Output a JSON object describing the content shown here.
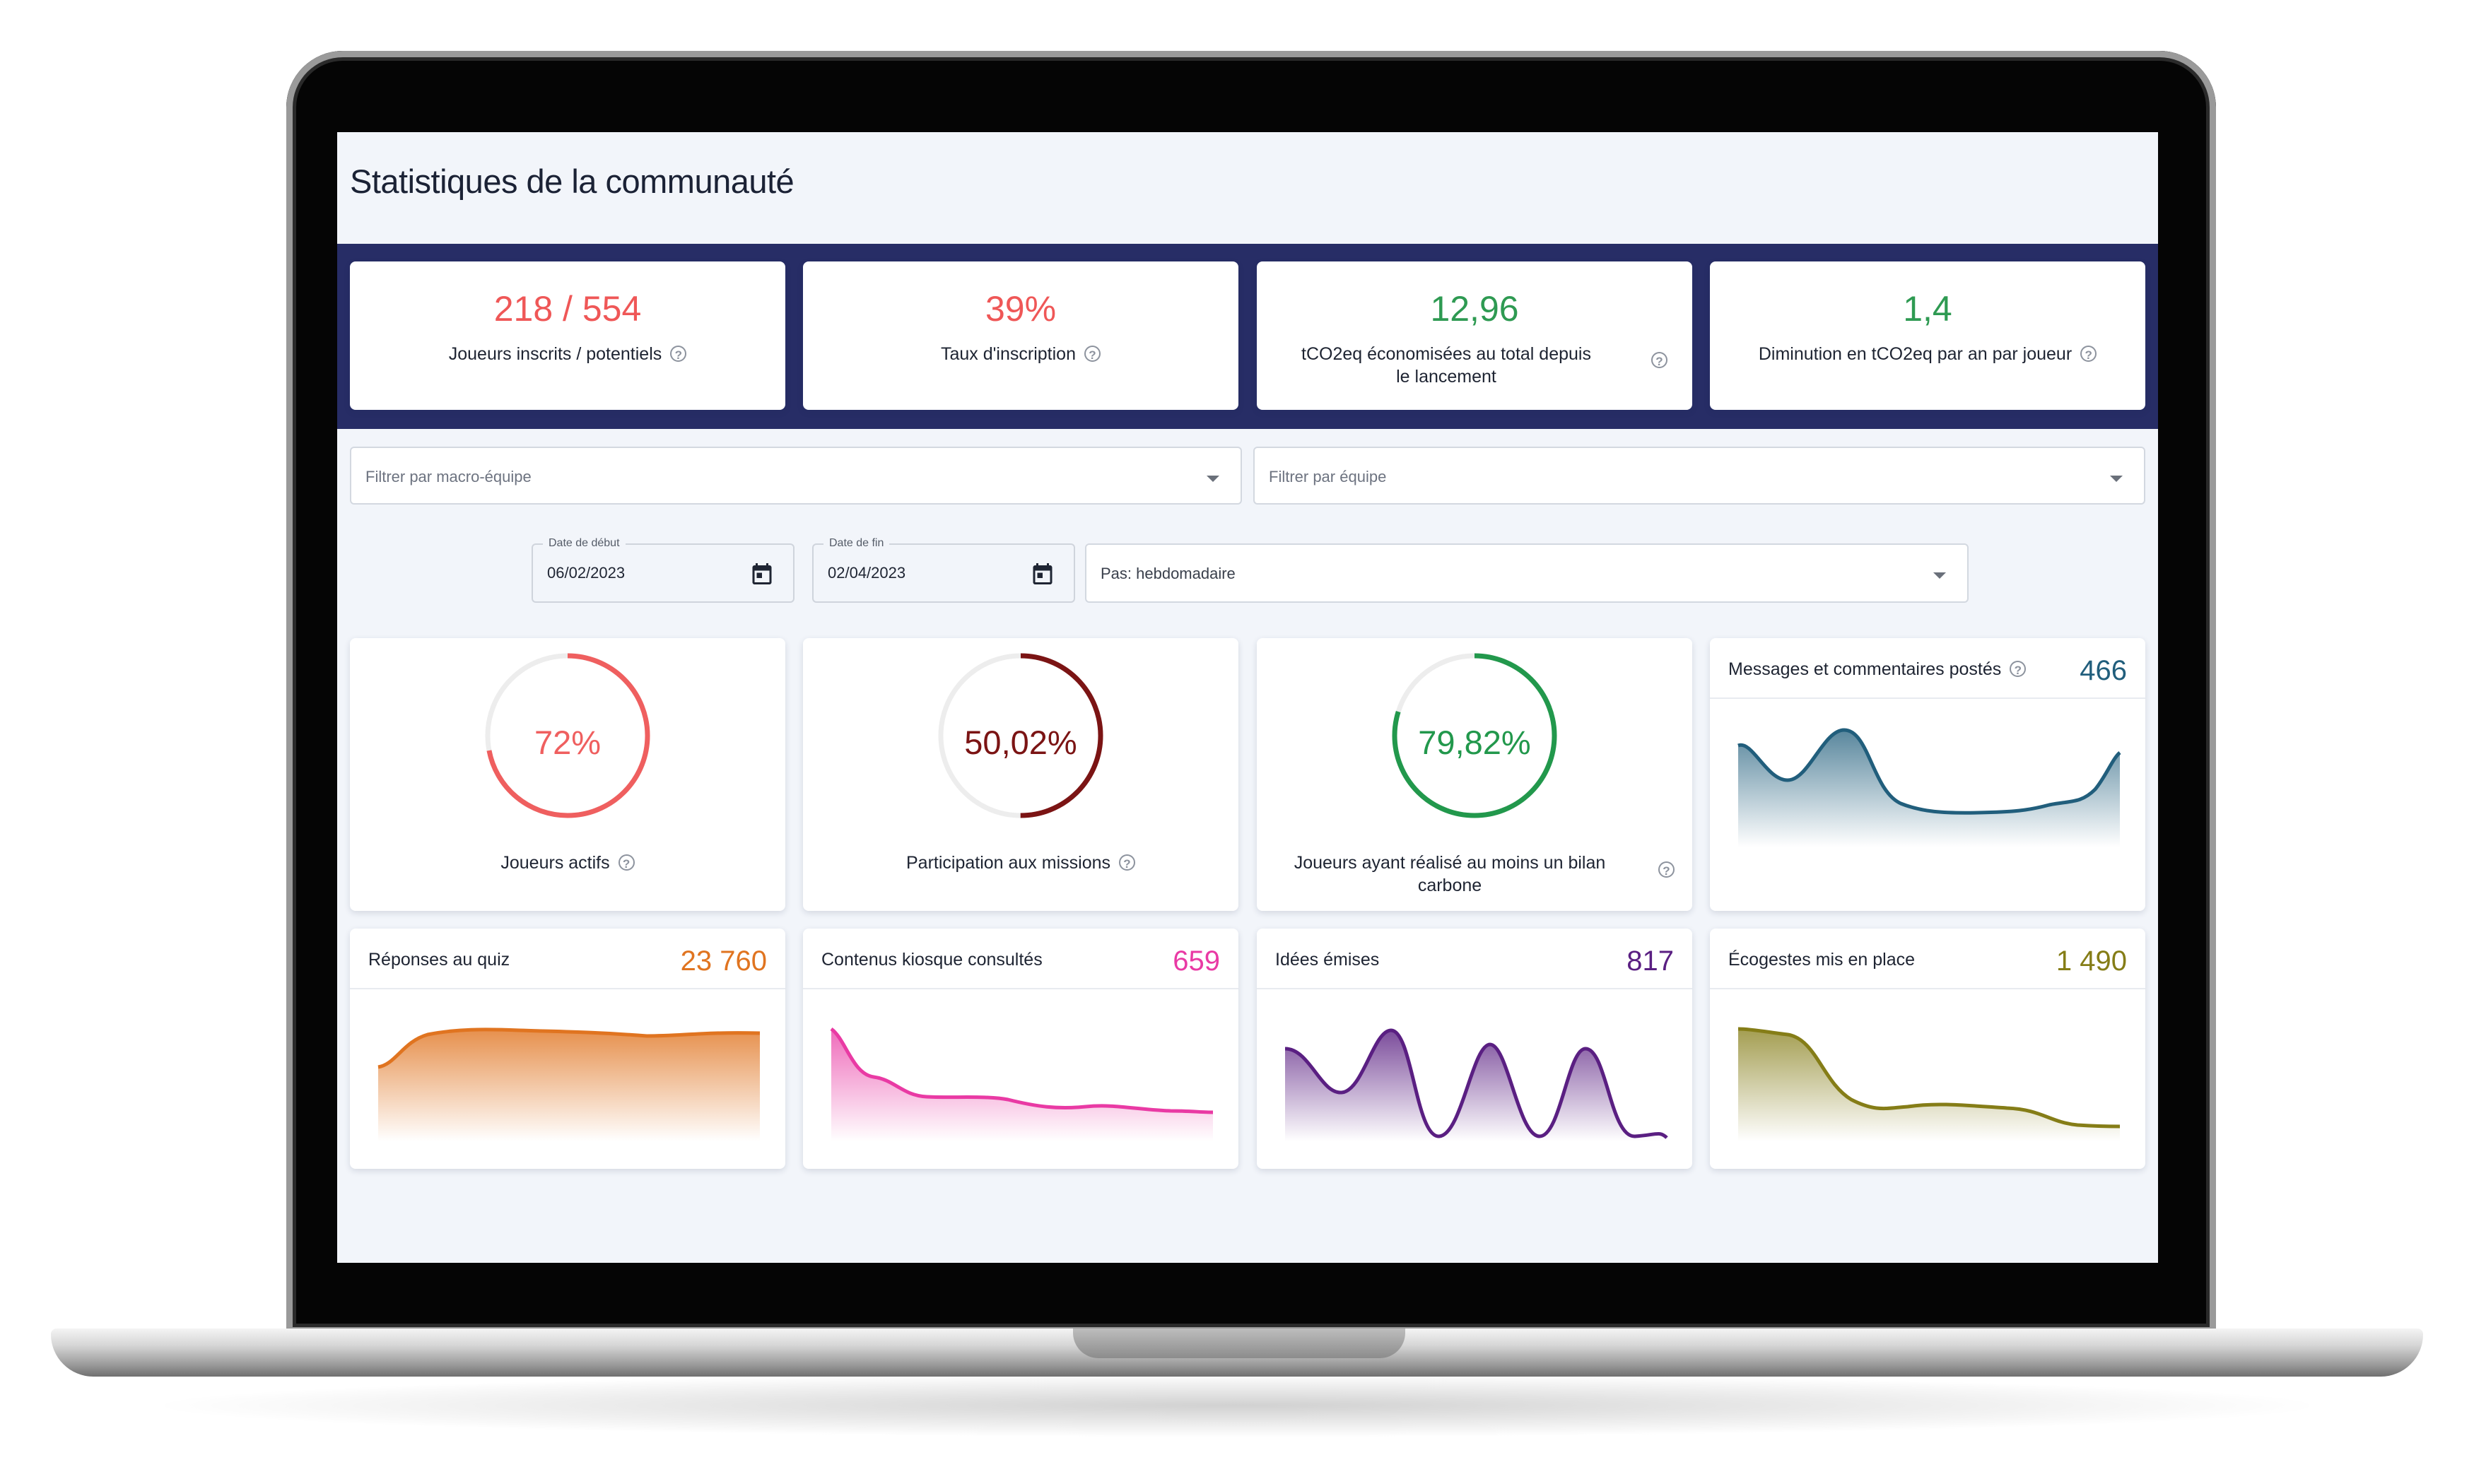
{
  "page": {
    "title": "Statistiques de la communauté"
  },
  "kpis": [
    {
      "value": "218 / 554",
      "label": "Joueurs inscrits / potentiels",
      "color": "#ef5757"
    },
    {
      "value": "39%",
      "label": "Taux d'inscription",
      "color": "#ef5757"
    },
    {
      "value": "12,96",
      "label": "tCO2eq économisées au total depuis le lancement",
      "color": "#2e9a52"
    },
    {
      "value": "1,4",
      "label": "Diminution en tCO2eq par an par joueur",
      "color": "#2e9a52"
    }
  ],
  "filters": {
    "macro_team_placeholder": "Filtrer par macro-équipe",
    "team_placeholder": "Filtrer par équipe",
    "start_label": "Date de début",
    "start_value": "06/02/2023",
    "end_label": "Date de fin",
    "end_value": "02/04/2023",
    "step_value": "Pas: hebdomadaire"
  },
  "gauges": [
    {
      "value": "72%",
      "fraction": 0.72,
      "label": "Joueurs actifs",
      "color": "#ef5f5f"
    },
    {
      "value": "50,02%",
      "fraction": 0.5002,
      "label": "Participation aux missions",
      "color": "#7b1414"
    },
    {
      "value": "79,82%",
      "fraction": 0.7982,
      "label": "Joueurs ayant réalisé au moins un bilan carbone",
      "color": "#22984c"
    }
  ],
  "cards": [
    {
      "title": "Messages et commentaires postés",
      "value": "466",
      "color": "#215e7c",
      "help": true
    },
    {
      "title": "Réponses au quiz",
      "value": "23 760",
      "color": "#e07420"
    },
    {
      "title": "Contenus kiosque consultés",
      "value": "659",
      "color": "#e93aa4"
    },
    {
      "title": "Idées émises",
      "value": "817",
      "color": "#5a1f82"
    },
    {
      "title": "Écogestes mis en place",
      "value": "1 490",
      "color": "#857d17"
    }
  ]
}
